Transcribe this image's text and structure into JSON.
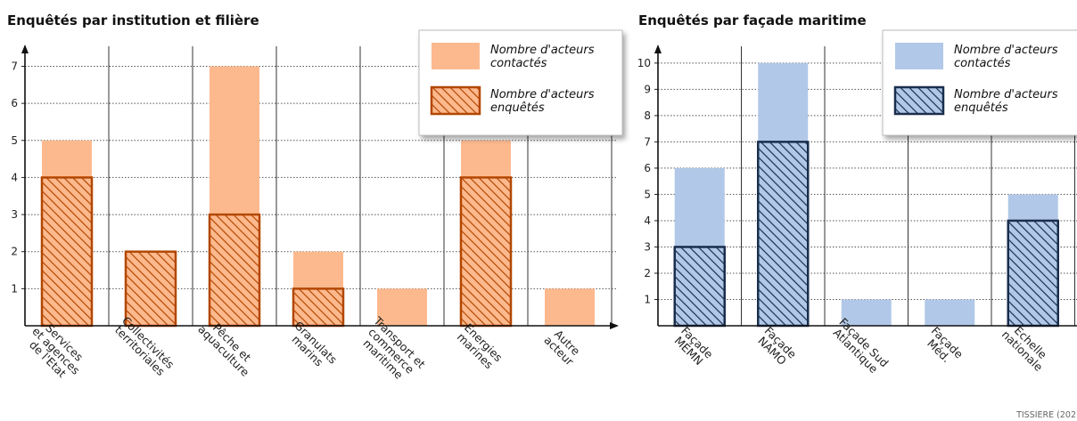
{
  "chart_data": [
    {
      "type": "bar",
      "title": "Enquêtés par institution et filière",
      "categories": [
        [
          "Services",
          "et agences",
          "de l'Etat"
        ],
        [
          "Collectivités",
          "territoriales"
        ],
        [
          "Pêche et",
          "aquaculture"
        ],
        [
          "Granulats",
          "marins"
        ],
        [
          "Transport et",
          "commerce",
          "maritime"
        ],
        [
          "Energies",
          "marines"
        ],
        [
          "Autre",
          "acteur"
        ]
      ],
      "series": [
        {
          "name": "Nombre d'acteurs contactés",
          "legend_lines": [
            "Nombre d'acteurs",
            "contactés"
          ],
          "values": [
            5,
            2,
            7,
            2,
            1,
            5,
            1
          ]
        },
        {
          "name": "Nombre d'acteurs enquêtés",
          "legend_lines": [
            "Nombre d'acteurs",
            "enquêtés"
          ],
          "values": [
            4,
            2,
            3,
            1,
            0,
            4,
            0
          ]
        }
      ],
      "yticks": [
        1,
        2,
        3,
        4,
        5,
        6,
        7
      ],
      "ylim": [
        0,
        7.3
      ],
      "grid": true,
      "legend": "top-right",
      "colors": {
        "contacted": "#fdb98e",
        "surveyed": "#fdb98e",
        "stroke": "#b34700",
        "hatch": "#b34700"
      }
    },
    {
      "type": "bar",
      "title": "Enquêtés par façade maritime",
      "categories": [
        [
          "Façade",
          "MEMN"
        ],
        [
          "Façade",
          "NAMO"
        ],
        [
          "Façade Sud",
          "Atlantique"
        ],
        [
          "Façade",
          "Méd."
        ],
        [
          "Echelle",
          "nationale"
        ]
      ],
      "series": [
        {
          "name": "Nombre d'acteurs contactés",
          "legend_lines": [
            "Nombre d'acteurs",
            "contactés"
          ],
          "values": [
            6,
            10,
            1,
            1,
            5
          ]
        },
        {
          "name": "Nombre d'acteurs enquêtés",
          "legend_lines": [
            "Nombre d'acteurs",
            "enquêtés"
          ],
          "values": [
            3,
            7,
            0,
            0,
            4
          ]
        }
      ],
      "yticks": [
        1,
        2,
        3,
        4,
        5,
        6,
        7,
        8,
        9,
        10
      ],
      "ylim": [
        0,
        10.3
      ],
      "grid": true,
      "legend": "top-right",
      "colors": {
        "contacted": "#b1c8e8",
        "surveyed": "#b1c8e8",
        "stroke": "#1a2e4d",
        "hatch": "#1a2e4d"
      }
    }
  ],
  "credit": "TISSIERE (202"
}
